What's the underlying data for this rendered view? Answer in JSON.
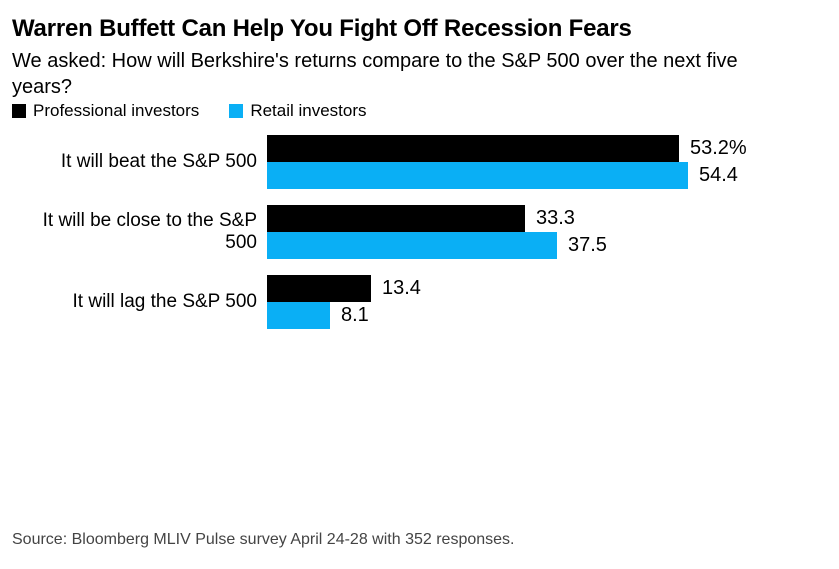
{
  "header": {
    "title": "Warren Buffett Can Help You Fight Off Recession Fears",
    "subtitle": "We asked: How will Berkshire's returns compare to the S&P 500 over the next five years?"
  },
  "legend": [
    {
      "label": "Professional investors",
      "color": "#000000"
    },
    {
      "label": "Retail investors",
      "color": "#0AAFF5"
    }
  ],
  "chart_data": {
    "type": "bar",
    "orientation": "horizontal",
    "title": "Warren Buffett Can Help You Fight Off Recession Fears",
    "subtitle": "We asked: How will Berkshire's returns compare to the S&P 500 over the next five years?",
    "categories": [
      "It will beat the S&P 500",
      "It will be close to the S&P 500",
      "It will lag the S&P 500"
    ],
    "series": [
      {
        "name": "Professional investors",
        "color": "#000000",
        "values": [
          53.2,
          33.3,
          13.4
        ],
        "value_labels": [
          "53.2%",
          "33.3",
          "13.4"
        ]
      },
      {
        "name": "Retail investors",
        "color": "#0AAFF5",
        "values": [
          54.4,
          37.5,
          8.1
        ],
        "value_labels": [
          "54.4",
          "37.5",
          "8.1"
        ]
      }
    ],
    "xlim": [
      0,
      60
    ],
    "grid": false,
    "legend_position": "top",
    "value_labels_shown": true
  },
  "footer": {
    "source": "Source: Bloomberg MLIV Pulse survey April 24-28 with 352 responses."
  }
}
